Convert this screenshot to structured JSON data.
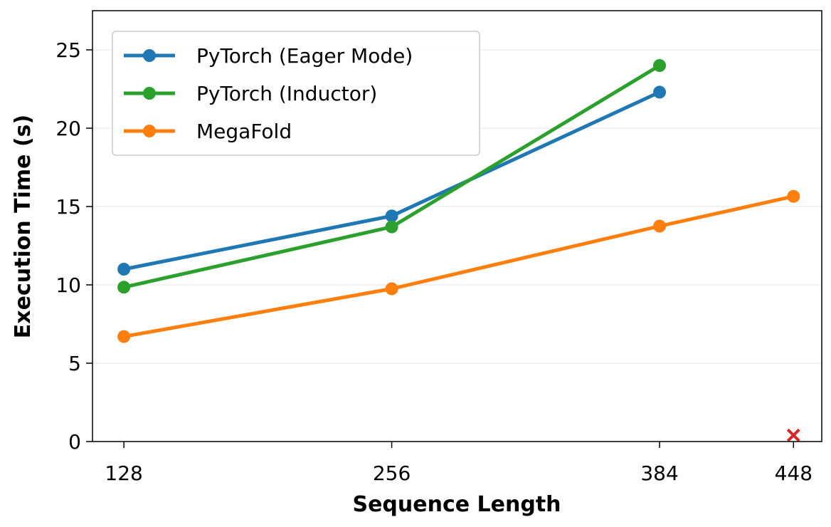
{
  "chart_data": {
    "type": "line",
    "xlabel": "Sequence Length",
    "ylabel": "Execution Time (s)",
    "x": [
      128,
      256,
      384,
      448
    ],
    "x_ticks": [
      "128",
      "256",
      "384",
      "448"
    ],
    "y_ticks": [
      "0",
      "5",
      "10",
      "15",
      "20",
      "25"
    ],
    "ylim": [
      0,
      27.5
    ],
    "grid": "horizontal",
    "legend_position": "top-left",
    "series": [
      {
        "name": "PyTorch (Eager Mode)",
        "color": "#1f77b4",
        "x": [
          128,
          256,
          384
        ],
        "values": [
          11.0,
          14.4,
          22.3
        ]
      },
      {
        "name": "PyTorch (Inductor)",
        "color": "#2ca02c",
        "x": [
          128,
          256,
          384
        ],
        "values": [
          9.85,
          13.7,
          24.0
        ]
      },
      {
        "name": "MegaFold",
        "color": "#ff7f0e",
        "x": [
          128,
          256,
          384,
          448
        ],
        "values": [
          6.7,
          9.75,
          13.75,
          15.65
        ]
      }
    ],
    "markers": [
      {
        "name": "out-of-memory-marker",
        "x": 448,
        "y": 0.4,
        "symbol": "x",
        "color": "#d62728"
      }
    ]
  }
}
